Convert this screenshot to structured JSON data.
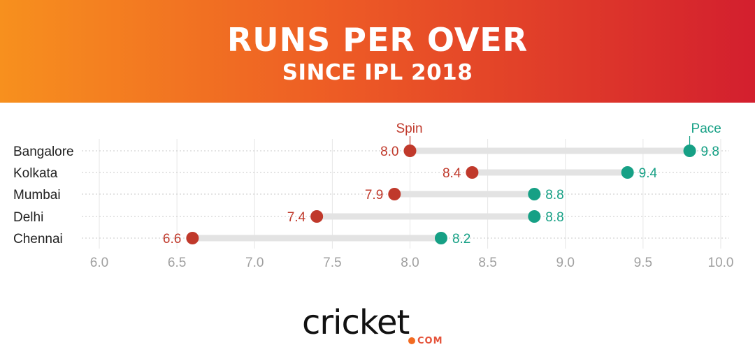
{
  "header": {
    "title": "RUNS PER OVER",
    "subtitle": "SINCE IPL 2018"
  },
  "logo": {
    "wordmark": "cricket",
    "domain": "COM"
  },
  "colors": {
    "spin": "#c0392b",
    "pace": "#16a085",
    "track": "#e3e3e3",
    "grid": "#e6e6e6",
    "axis_text": "#a0a0a0"
  },
  "chart_data": {
    "type": "scatter",
    "subtype": "dumbbell",
    "categories": [
      "Bangalore",
      "Kolkata",
      "Mumbai",
      "Delhi",
      "Chennai"
    ],
    "series": [
      {
        "name": "Spin",
        "values": [
          8.0,
          8.4,
          7.9,
          7.4,
          6.6
        ]
      },
      {
        "name": "Pace",
        "values": [
          9.8,
          9.4,
          8.8,
          8.8,
          8.2
        ]
      }
    ],
    "xlim": [
      6.0,
      10.0
    ],
    "xticks": [
      "6.0",
      "6.5",
      "7.0",
      "7.5",
      "8.0",
      "8.5",
      "9.0",
      "9.5",
      "10.0"
    ],
    "grid": true,
    "legend": "series names labelled above the top row markers"
  }
}
